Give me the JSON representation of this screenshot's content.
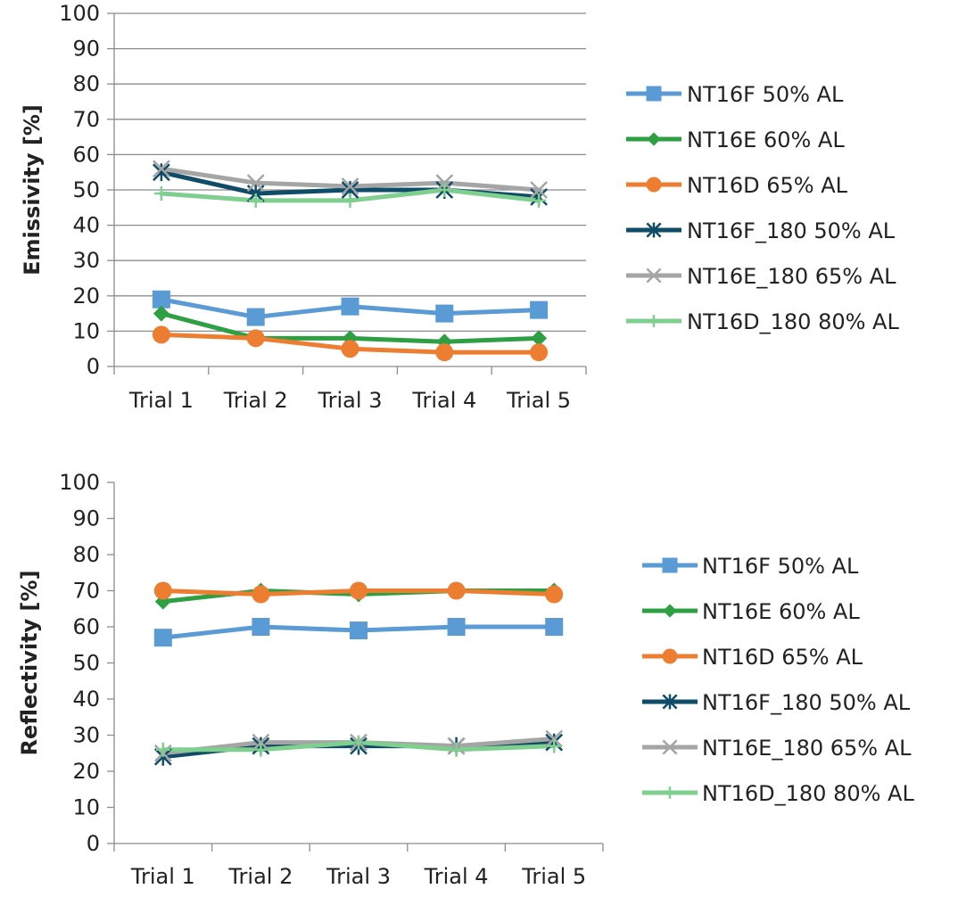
{
  "chart_data": [
    {
      "type": "line",
      "title": "",
      "xlabel": "",
      "ylabel": "Emissivity [%]",
      "ylim": [
        0,
        100
      ],
      "yticks": [
        "0",
        "10",
        "20",
        "30",
        "40",
        "50",
        "60",
        "70",
        "80",
        "90",
        "100"
      ],
      "grid": true,
      "legend_position": "right",
      "categories": [
        "Trial 1",
        "Trial 2",
        "Trial 3",
        "Trial 4",
        "Trial 5"
      ],
      "series": [
        {
          "name": "NT16F 50% AL",
          "values": [
            19,
            14,
            17,
            15,
            16
          ],
          "color": "#5B9BD5",
          "marker": "square"
        },
        {
          "name": "NT16E 60% AL",
          "values": [
            15,
            8,
            8,
            7,
            8
          ],
          "color": "#2EA043",
          "marker": "diamond"
        },
        {
          "name": "NT16D 65% AL",
          "values": [
            9,
            8,
            5,
            4,
            4
          ],
          "color": "#ED7D31",
          "marker": "circle"
        },
        {
          "name": "NT16F_180 50% AL",
          "values": [
            55,
            49,
            50,
            50,
            48
          ],
          "color": "#0F4C67",
          "marker": "asterisk"
        },
        {
          "name": "NT16E_180 65% AL",
          "values": [
            56,
            52,
            51,
            52,
            50
          ],
          "color": "#A5A5A5",
          "marker": "x"
        },
        {
          "name": "NT16D_180 80% AL",
          "values": [
            49,
            47,
            47,
            50,
            47
          ],
          "color": "#7FCF8F",
          "marker": "plus"
        }
      ]
    },
    {
      "type": "line",
      "title": "",
      "xlabel": "",
      "ylabel": "Reflectivity [%]",
      "ylim": [
        0,
        100
      ],
      "yticks": [
        "0",
        "10",
        "20",
        "30",
        "40",
        "50",
        "60",
        "70",
        "80",
        "90",
        "100"
      ],
      "grid": false,
      "legend_position": "right",
      "categories": [
        "Trial 1",
        "Trial 2",
        "Trial 3",
        "Trial 4",
        "Trial 5"
      ],
      "series": [
        {
          "name": "NT16F 50% AL",
          "values": [
            57,
            60,
            59,
            60,
            60
          ],
          "color": "#5B9BD5",
          "marker": "square"
        },
        {
          "name": "NT16E 60% AL",
          "values": [
            67,
            70,
            69,
            70,
            70
          ],
          "color": "#2EA043",
          "marker": "diamond"
        },
        {
          "name": "NT16D 65% AL",
          "values": [
            70,
            69,
            70,
            70,
            69
          ],
          "color": "#ED7D31",
          "marker": "circle"
        },
        {
          "name": "NT16F_180 50% AL",
          "values": [
            24,
            27,
            27,
            27,
            28
          ],
          "color": "#0F4C67",
          "marker": "asterisk"
        },
        {
          "name": "NT16E_180 65% AL",
          "values": [
            25,
            28,
            28,
            27,
            29
          ],
          "color": "#A5A5A5",
          "marker": "x"
        },
        {
          "name": "NT16D_180 80% AL",
          "values": [
            26,
            26,
            28,
            26,
            27
          ],
          "color": "#7FCF8F",
          "marker": "plus"
        }
      ]
    }
  ],
  "style": {
    "grid_color": "#8C8C8C",
    "axis_color": "#8C8C8C",
    "text_color": "#222222"
  }
}
